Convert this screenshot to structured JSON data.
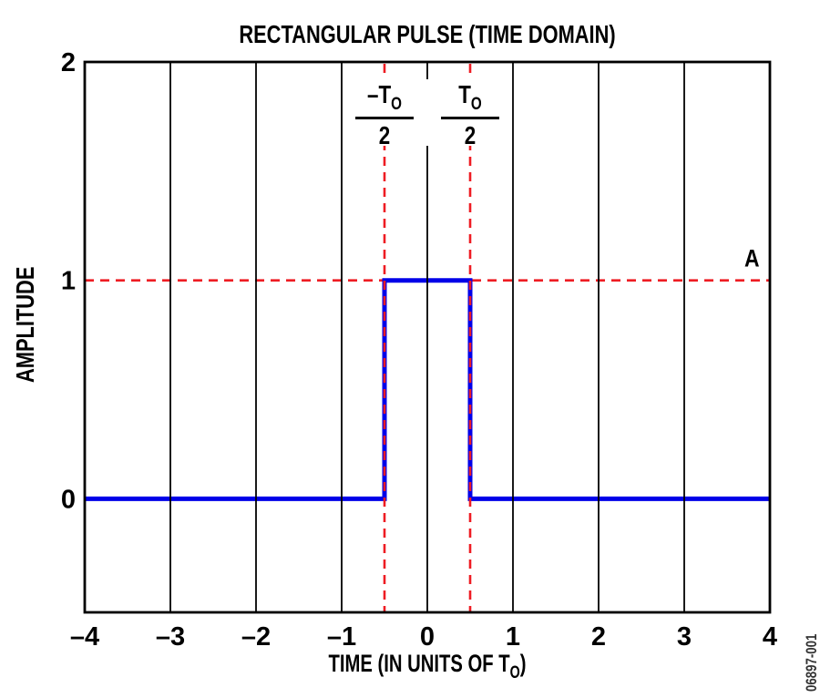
{
  "figure": {
    "watermark": "06897-001"
  },
  "chart_data": {
    "type": "line",
    "title": "RECTANGULAR PULSE (TIME DOMAIN)",
    "xlabel": {
      "prefix": "TIME (IN UNITS OF T",
      "subscript": "O",
      "suffix": ")"
    },
    "ylabel": "AMPLITUDE",
    "xlim": [
      -4,
      4
    ],
    "ylim": [
      -0.52,
      2
    ],
    "grid": {
      "x_values": [
        -3,
        -2,
        -1,
        0,
        1,
        2,
        3
      ],
      "color": "#000000"
    },
    "x_ticks": {
      "values": [
        -4,
        -3,
        -2,
        -1,
        0,
        1,
        2,
        3,
        4
      ],
      "labels": [
        "–4",
        "–3",
        "–2",
        "–1",
        "0",
        "1",
        "2",
        "3",
        "4"
      ]
    },
    "y_ticks": {
      "values": [
        0,
        1,
        2
      ],
      "labels": [
        "0",
        "1",
        "2"
      ]
    },
    "series": [
      {
        "name": "rectangular-pulse",
        "color": "#0000e8",
        "width": 5,
        "points": [
          [
            -4,
            0
          ],
          [
            -0.5,
            0
          ],
          [
            -0.5,
            1
          ],
          [
            0.5,
            1
          ],
          [
            0.5,
            0
          ],
          [
            4,
            0
          ]
        ]
      }
    ],
    "reference_lines": {
      "color": "#ee1c23",
      "horizontal": [
        {
          "y": 1,
          "label": "A",
          "label_x": 3.79
        }
      ],
      "vertical": [
        {
          "x": -0.5
        },
        {
          "x": 0.5
        }
      ]
    },
    "annotations": [
      {
        "numerator_prefix": "–T",
        "numerator_sub": "O",
        "denominator": "2",
        "x": -0.5
      },
      {
        "numerator_prefix": "T",
        "numerator_sub": "O",
        "denominator": "2",
        "x": 0.5
      }
    ]
  }
}
